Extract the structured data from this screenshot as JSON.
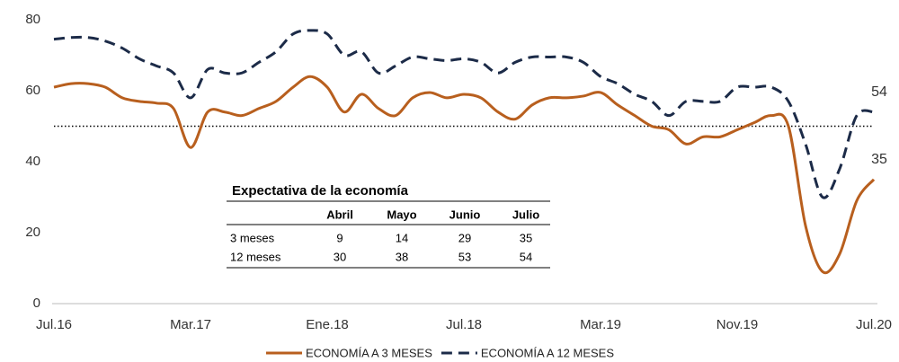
{
  "chart_data": {
    "type": "line",
    "categories": [
      "Jul.16",
      null,
      null,
      null,
      null,
      null,
      null,
      null,
      "Mar.17",
      null,
      null,
      null,
      null,
      null,
      null,
      null,
      "Ene.18",
      null,
      null,
      null,
      null,
      null,
      null,
      null,
      "Jul.18",
      null,
      null,
      null,
      null,
      null,
      null,
      null,
      "Mar.19",
      null,
      null,
      null,
      null,
      null,
      null,
      null,
      "Nov.19",
      null,
      null,
      null,
      null,
      null,
      null,
      null,
      "Jul.20"
    ],
    "series": [
      {
        "name": "ECONOMÍA A 3 MESES",
        "color": "#b85f1e",
        "dash": false,
        "values": [
          61,
          62,
          62,
          61,
          58,
          57,
          56.5,
          55,
          44,
          54,
          54,
          53,
          55,
          57,
          61,
          64,
          61,
          54,
          59,
          55,
          53,
          58,
          59.5,
          58,
          59,
          58,
          54,
          52,
          56,
          58,
          58,
          58.5,
          59.5,
          56,
          53,
          50,
          49,
          45,
          47,
          47,
          49,
          51,
          53,
          50,
          22,
          9,
          14,
          29,
          35
        ]
      },
      {
        "name": "ECONOMÍA A 12 MESES",
        "color": "#1c2b48",
        "dash": true,
        "values": [
          74.5,
          75,
          75,
          74,
          72,
          69,
          67,
          65,
          58,
          66,
          65,
          65,
          68,
          71,
          76,
          77,
          76,
          70,
          71,
          65,
          67,
          69.5,
          69,
          68.5,
          69,
          68,
          65,
          68,
          69.5,
          69.5,
          69.5,
          68,
          64,
          62,
          59,
          57,
          53,
          57,
          57,
          57,
          61,
          61,
          61,
          57,
          45,
          30,
          38,
          53,
          54
        ]
      }
    ],
    "ylim": [
      0,
      80
    ],
    "yticks": [
      0,
      20,
      40,
      60,
      80
    ],
    "reference_line": 50,
    "table": {
      "title": "Expectativa de la economía",
      "columns": [
        "Abril",
        "Mayo",
        "Junio",
        "Julio"
      ],
      "rows": [
        {
          "label": "3 meses",
          "values": [
            9,
            14,
            29,
            35
          ]
        },
        {
          "label": "12 meses",
          "values": [
            30,
            38,
            53,
            54
          ]
        }
      ]
    }
  }
}
